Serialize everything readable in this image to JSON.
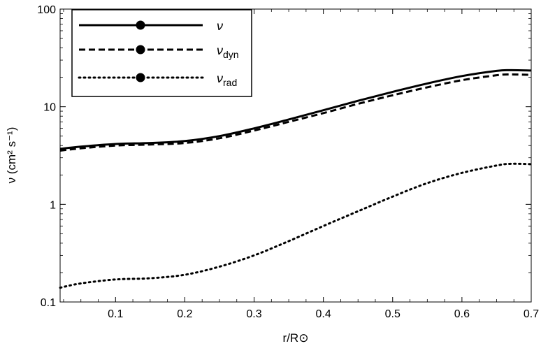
{
  "chart_data": {
    "type": "line",
    "title": "",
    "xlabel": "r/R⊙",
    "ylabel": "ν (cm² s⁻¹)",
    "xlim": [
      0.02,
      0.7
    ],
    "ylim": [
      0.1,
      100
    ],
    "yscale": "log",
    "grid": false,
    "legend_position": "top-left",
    "x_ticks": [
      0.1,
      0.2,
      0.3,
      0.4,
      0.5,
      0.6,
      0.7
    ],
    "x_tick_labels": [
      "0.1",
      "0.2",
      "0.3",
      "0.4",
      "0.5",
      "0.6",
      "0.7"
    ],
    "y_ticks": [
      0.1,
      1,
      10,
      100
    ],
    "y_tick_labels": [
      "0.1",
      "1",
      "10",
      "100"
    ],
    "series": [
      {
        "name": "ν",
        "style": "solid",
        "color": "#000000",
        "x": [
          0.02,
          0.05,
          0.1,
          0.15,
          0.2,
          0.25,
          0.3,
          0.35,
          0.4,
          0.45,
          0.5,
          0.55,
          0.6,
          0.65,
          0.67,
          0.7
        ],
        "y": [
          3.7,
          3.9,
          4.15,
          4.25,
          4.45,
          5.0,
          6.0,
          7.4,
          9.2,
          11.5,
          14.2,
          17.3,
          20.6,
          23.3,
          23.7,
          23.5
        ]
      },
      {
        "name": "ν_dyn",
        "style": "dashed",
        "color": "#000000",
        "x": [
          0.02,
          0.05,
          0.1,
          0.15,
          0.2,
          0.25,
          0.3,
          0.35,
          0.4,
          0.45,
          0.5,
          0.55,
          0.6,
          0.65,
          0.67,
          0.7
        ],
        "y": [
          3.55,
          3.75,
          4.0,
          4.1,
          4.25,
          4.75,
          5.7,
          7.0,
          8.6,
          10.7,
          13.1,
          15.8,
          18.7,
          21.0,
          21.4,
          21.2
        ]
      },
      {
        "name": "ν_rad",
        "style": "dotted",
        "color": "#000000",
        "x": [
          0.02,
          0.05,
          0.1,
          0.15,
          0.2,
          0.25,
          0.3,
          0.35,
          0.4,
          0.45,
          0.5,
          0.55,
          0.6,
          0.65,
          0.67,
          0.7
        ],
        "y": [
          0.14,
          0.155,
          0.17,
          0.175,
          0.19,
          0.23,
          0.3,
          0.42,
          0.6,
          0.85,
          1.2,
          1.65,
          2.1,
          2.5,
          2.6,
          2.58
        ]
      }
    ],
    "legend": [
      {
        "base": "ν",
        "sub": "",
        "style": "solid"
      },
      {
        "base": "ν",
        "sub": "dyn",
        "style": "dashed"
      },
      {
        "base": "ν",
        "sub": "rad",
        "style": "dotted"
      }
    ]
  }
}
